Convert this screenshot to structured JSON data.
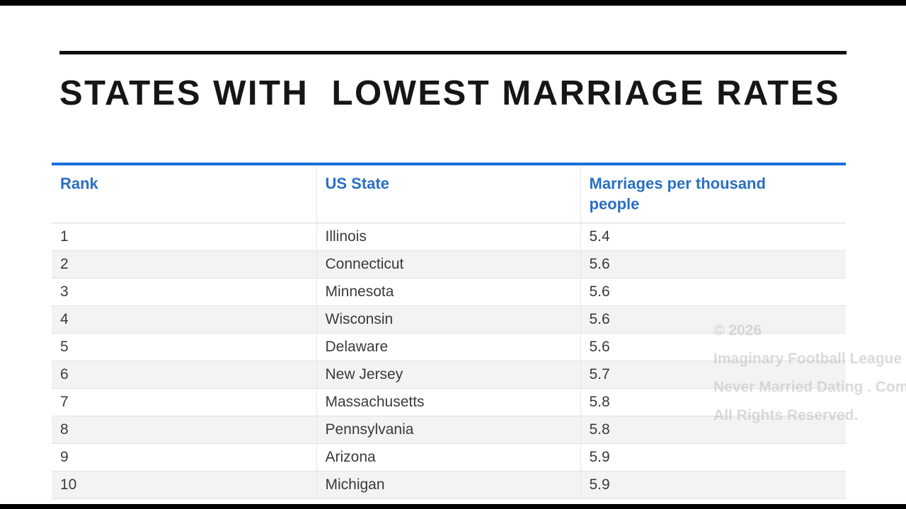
{
  "page": {
    "title": "STATES WITH  LOWEST MARRIAGE RATES"
  },
  "table": {
    "columns": [
      "Rank",
      "US State",
      "Marriages per thousand people"
    ],
    "rows": [
      {
        "rank": "1",
        "state": "Illinois",
        "rate": "5.4"
      },
      {
        "rank": "2",
        "state": "Connecticut",
        "rate": "5.6"
      },
      {
        "rank": "3",
        "state": "Minnesota",
        "rate": "5.6"
      },
      {
        "rank": "4",
        "state": "Wisconsin",
        "rate": "5.6"
      },
      {
        "rank": "5",
        "state": "Delaware",
        "rate": "5.6"
      },
      {
        "rank": "6",
        "state": "New Jersey",
        "rate": "5.7"
      },
      {
        "rank": "7",
        "state": "Massachusetts",
        "rate": "5.8"
      },
      {
        "rank": "8",
        "state": "Pennsylvania",
        "rate": "5.8"
      },
      {
        "rank": "9",
        "state": "Arizona",
        "rate": "5.9"
      },
      {
        "rank": "10",
        "state": "Michigan",
        "rate": "5.9"
      }
    ]
  },
  "watermark": {
    "lines": [
      "© 2026",
      "Imaginary Football League",
      "Never Married Dating . Com",
      "All Rights Reserved."
    ]
  },
  "colors": {
    "header_text": "#2b6fc3",
    "table_top_border": "#1b6fd8",
    "row_alt": "#f3f3f3"
  },
  "chart_data": {
    "type": "table",
    "title": "STATES WITH LOWEST MARRIAGE RATES",
    "columns": [
      "Rank",
      "US State",
      "Marriages per thousand people"
    ],
    "rows": [
      [
        1,
        "Illinois",
        5.4
      ],
      [
        2,
        "Connecticut",
        5.6
      ],
      [
        3,
        "Minnesota",
        5.6
      ],
      [
        4,
        "Wisconsin",
        5.6
      ],
      [
        5,
        "Delaware",
        5.6
      ],
      [
        6,
        "New Jersey",
        5.7
      ],
      [
        7,
        "Massachusetts",
        5.8
      ],
      [
        8,
        "Pennsylvania",
        5.8
      ],
      [
        9,
        "Arizona",
        5.9
      ],
      [
        10,
        "Michigan",
        5.9
      ]
    ]
  }
}
